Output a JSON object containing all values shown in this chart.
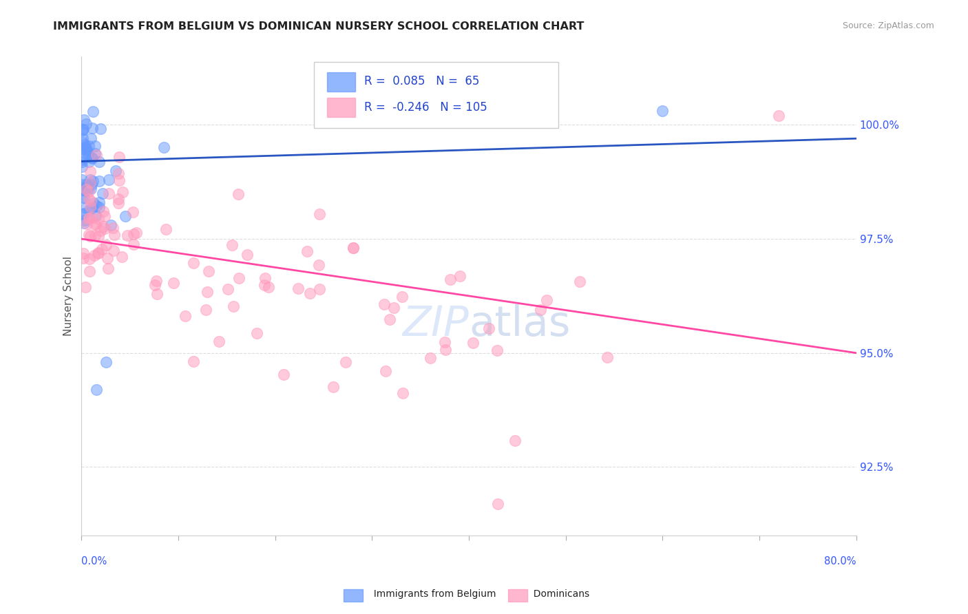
{
  "title": "IMMIGRANTS FROM BELGIUM VS DOMINICAN NURSERY SCHOOL CORRELATION CHART",
  "source_text": "Source: ZipAtlas.com",
  "ylabel": "Nursery School",
  "ylabel_right_ticks": [
    "100.0%",
    "97.5%",
    "95.0%",
    "92.5%"
  ],
  "ylabel_right_values": [
    100.0,
    97.5,
    95.0,
    92.5
  ],
  "xmin": 0.0,
  "xmax": 80.0,
  "ymin": 91.0,
  "ymax": 101.5,
  "legend_blue_r": "0.085",
  "legend_blue_n": "65",
  "legend_pink_r": "-0.246",
  "legend_pink_n": "105",
  "blue_color": "#6699ff",
  "pink_color": "#ff99bb",
  "blue_line_color": "#1144bb",
  "pink_line_color": "#ff3399",
  "watermark": "ZIPatlas",
  "blue_trend": [
    99.2,
    99.7
  ],
  "pink_trend": [
    97.5,
    95.0
  ],
  "grid_color": "#dddddd",
  "grid_style": "--",
  "spine_color": "#cccccc",
  "tick_color": "#aaaaaa",
  "right_tick_color": "#3355ff",
  "xlabel_color": "#3355ff"
}
